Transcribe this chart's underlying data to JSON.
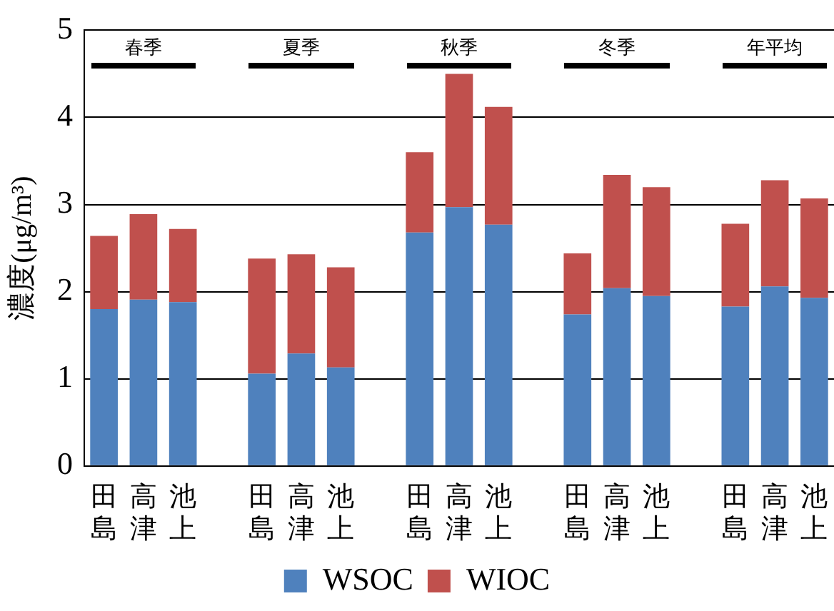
{
  "chart_data": {
    "type": "bar",
    "stacked": true,
    "ylabel": "濃度(μg/m³)",
    "categories": [
      "田島",
      "高津",
      "池上",
      null,
      "田島",
      "高津",
      "池上",
      null,
      "田島",
      "高津",
      "池上",
      null,
      "田島",
      "高津",
      "池上",
      null,
      "田島",
      "高津",
      "池上"
    ],
    "series": [
      {
        "name": "WSOC",
        "color": "#4f81bd",
        "values": [
          1.8,
          1.91,
          1.88,
          null,
          1.06,
          1.29,
          1.13,
          null,
          2.68,
          2.97,
          2.77,
          null,
          1.74,
          2.04,
          1.95,
          null,
          1.83,
          2.06,
          1.93
        ]
      },
      {
        "name": "WIOC",
        "color": "#c0504d",
        "values": [
          0.84,
          0.98,
          0.84,
          null,
          1.32,
          1.14,
          1.15,
          null,
          0.92,
          1.53,
          1.35,
          null,
          0.7,
          1.3,
          1.25,
          null,
          0.95,
          1.22,
          1.14
        ]
      }
    ],
    "ylim": [
      0,
      5
    ],
    "yticks": [
      0,
      1,
      2,
      3,
      4,
      5
    ],
    "grid": "y",
    "legend": "bottom",
    "annotations": [
      "春季",
      "夏季",
      "秋季",
      "冬季",
      "年平均"
    ]
  }
}
